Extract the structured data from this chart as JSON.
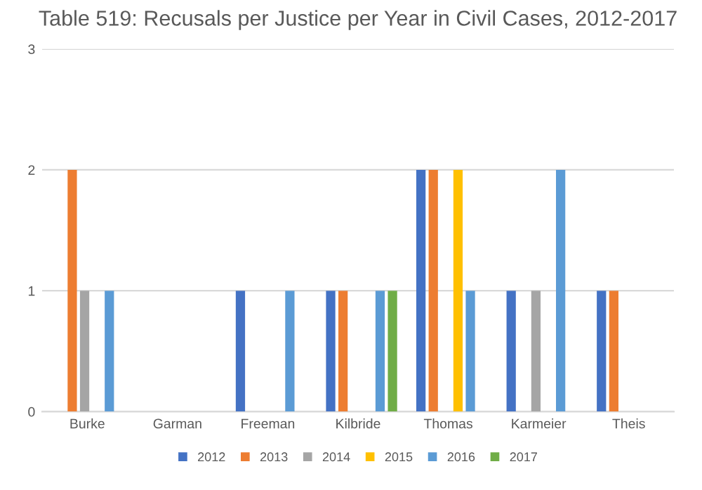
{
  "chart_data": {
    "type": "bar",
    "title": "Table 519: Recusals per Justice per Year in Civil Cases, 2012-2017",
    "categories": [
      "Burke",
      "Garman",
      "Freeman",
      "Kilbride",
      "Thomas",
      "Karmeier",
      "Theis"
    ],
    "series": [
      {
        "name": "2012",
        "color": "#4472c4",
        "values": [
          0,
          0,
          1,
          1,
          2,
          1,
          1
        ]
      },
      {
        "name": "2013",
        "color": "#ed7d31",
        "values": [
          2,
          0,
          0,
          1,
          2,
          0,
          1
        ]
      },
      {
        "name": "2014",
        "color": "#a5a5a5",
        "values": [
          1,
          0,
          0,
          0,
          0,
          1,
          0
        ]
      },
      {
        "name": "2015",
        "color": "#ffc000",
        "values": [
          0,
          0,
          0,
          0,
          2,
          0,
          0
        ]
      },
      {
        "name": "2016",
        "color": "#5b9bd5",
        "values": [
          1,
          0,
          1,
          1,
          1,
          2,
          0
        ]
      },
      {
        "name": "2017",
        "color": "#70ad47",
        "values": [
          0,
          0,
          0,
          1,
          0,
          0,
          0
        ]
      }
    ],
    "ylim": [
      0,
      3
    ],
    "yticks": [
      0,
      1,
      2,
      3
    ],
    "grid": "y",
    "legend": "bottom"
  }
}
